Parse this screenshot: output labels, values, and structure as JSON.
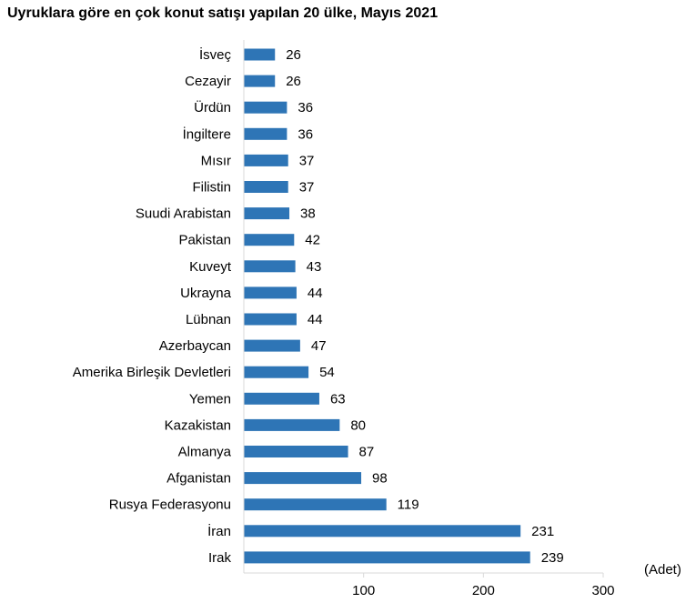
{
  "chart_data": {
    "type": "bar",
    "orientation": "horizontal",
    "title": "Uyruklara göre en çok konut satışı yapılan 20 ülke, Mayıs 2021",
    "unit_label": "(Adet)",
    "categories": [
      "İsveç",
      "Cezayir",
      "Ürdün",
      "İngiltere",
      "Mısır",
      "Filistin",
      "Suudi Arabistan",
      "Pakistan",
      "Kuveyt",
      "Ukrayna",
      "Lübnan",
      "Azerbaycan",
      "Amerika Birleşik Devletleri",
      "Yemen",
      "Kazakistan",
      "Almanya",
      "Afganistan",
      "Rusya Federasyonu",
      "İran",
      "Irak"
    ],
    "values": [
      26,
      26,
      36,
      36,
      37,
      37,
      38,
      42,
      43,
      44,
      44,
      47,
      54,
      63,
      80,
      87,
      98,
      119,
      231,
      239
    ],
    "xlim": [
      0,
      300
    ],
    "xticks": [
      100,
      200,
      300
    ],
    "bar_color": "#2E75B6",
    "grid": false,
    "legend": "none",
    "data_labels": true
  }
}
